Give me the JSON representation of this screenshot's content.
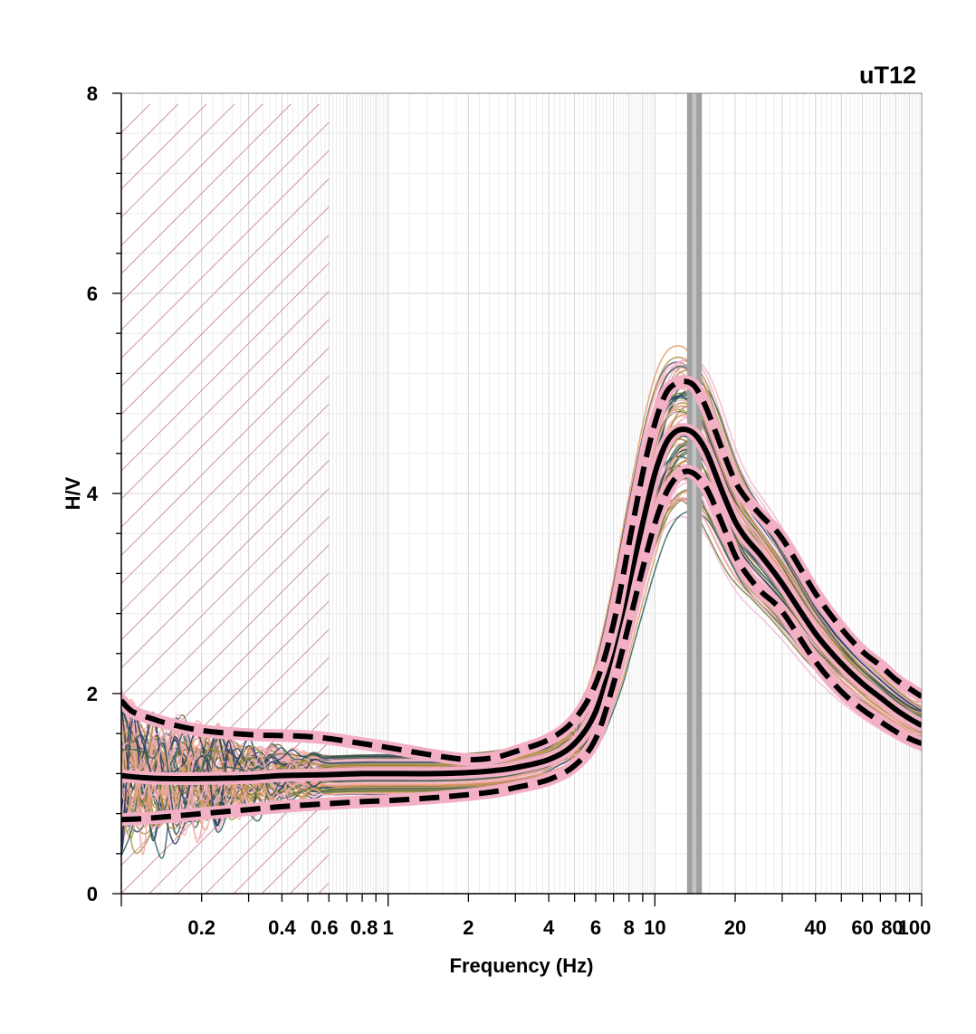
{
  "chart_data": {
    "type": "line",
    "title": "uT12",
    "xlabel": "Frequency (Hz)",
    "ylabel": "H/V",
    "x_scale": "log",
    "xlim": [
      0.1,
      100
    ],
    "ylim": [
      0,
      8
    ],
    "grid": true,
    "x_tick_labels": [
      {
        "value": 0.2,
        "label": "0.2"
      },
      {
        "value": 0.4,
        "label": "0.4"
      },
      {
        "value": 0.6,
        "label": "0.6"
      },
      {
        "value": 0.8,
        "label": "0.8"
      },
      {
        "value": 1,
        "label": "1"
      },
      {
        "value": 2,
        "label": "2"
      },
      {
        "value": 4,
        "label": "4"
      },
      {
        "value": 6,
        "label": "6"
      },
      {
        "value": 8,
        "label": "8"
      },
      {
        "value": 10,
        "label": "10"
      },
      {
        "value": 20,
        "label": "20"
      },
      {
        "value": 40,
        "label": "40"
      },
      {
        "value": 60,
        "label": "60"
      },
      {
        "value": 80,
        "label": "80"
      },
      {
        "value": 100,
        "label": "100"
      }
    ],
    "y_tick_labels": [
      {
        "value": 0,
        "label": "0"
      },
      {
        "value": 2,
        "label": "2"
      },
      {
        "value": 4,
        "label": "4"
      },
      {
        "value": 6,
        "label": "6"
      },
      {
        "value": 8,
        "label": "8"
      }
    ],
    "excluded_band": {
      "x": [
        0.1,
        0.6
      ],
      "color": "#c07a90",
      "pattern": "diagonal-hatch"
    },
    "peak_frequency_band": {
      "outer": [
        13.2,
        15.0
      ],
      "inner": [
        13.8,
        14.3
      ],
      "outer_color": "#a0a0a0",
      "inner_color": "#c4c4c4"
    },
    "window_curve_colors": [
      "#1f3a68",
      "#2e5e5a",
      "#6f7a3a",
      "#a8923c",
      "#e09a62",
      "#f4a69a",
      "#f1b3c6",
      "#f6b6d8"
    ],
    "series": [
      {
        "role": "mean",
        "style": "solid",
        "color": "#000000",
        "x": [
          0.1,
          0.12,
          0.15,
          0.2,
          0.3,
          0.4,
          0.6,
          0.8,
          1,
          1.5,
          2,
          2.5,
          3,
          4,
          5,
          6,
          7,
          8,
          9,
          10,
          11,
          12,
          13,
          14,
          15,
          16,
          18,
          20,
          22,
          25,
          30,
          40,
          50,
          60,
          70,
          80,
          90,
          100
        ],
        "y": [
          1.18,
          1.16,
          1.15,
          1.15,
          1.16,
          1.18,
          1.19,
          1.2,
          1.2,
          1.2,
          1.21,
          1.23,
          1.26,
          1.34,
          1.5,
          1.82,
          2.4,
          3.1,
          3.7,
          4.2,
          4.5,
          4.62,
          4.64,
          4.6,
          4.5,
          4.35,
          4.0,
          3.72,
          3.55,
          3.38,
          3.1,
          2.6,
          2.3,
          2.1,
          1.96,
          1.84,
          1.75,
          1.68
        ]
      },
      {
        "role": "mean+std",
        "style": "dashed",
        "color": "#000000",
        "x": [
          0.1,
          0.11,
          0.13,
          0.15,
          0.2,
          0.3,
          0.4,
          0.5,
          0.6,
          0.8,
          1,
          1.5,
          2,
          2.5,
          3,
          4,
          5,
          6,
          7,
          8,
          9,
          10,
          11,
          12,
          13,
          14,
          15,
          16,
          18,
          20,
          22,
          25,
          30,
          40,
          50,
          60,
          70,
          80,
          90,
          100
        ],
        "y": [
          1.93,
          1.82,
          1.75,
          1.7,
          1.63,
          1.59,
          1.58,
          1.57,
          1.55,
          1.5,
          1.46,
          1.38,
          1.34,
          1.36,
          1.42,
          1.54,
          1.74,
          2.1,
          2.7,
          3.5,
          4.2,
          4.7,
          5.0,
          5.1,
          5.12,
          5.08,
          4.95,
          4.78,
          4.42,
          4.12,
          3.95,
          3.78,
          3.55,
          3.0,
          2.65,
          2.42,
          2.28,
          2.14,
          2.05,
          1.97
        ]
      },
      {
        "role": "mean-std",
        "style": "dashed",
        "color": "#000000",
        "x": [
          0.1,
          0.12,
          0.15,
          0.2,
          0.3,
          0.4,
          0.6,
          0.8,
          1,
          1.5,
          2,
          2.5,
          3,
          4,
          5,
          6,
          7,
          8,
          9,
          10,
          11,
          12,
          13,
          14,
          15,
          16,
          18,
          20,
          22,
          25,
          30,
          40,
          50,
          60,
          70,
          80,
          90,
          100
        ],
        "y": [
          0.74,
          0.75,
          0.77,
          0.8,
          0.84,
          0.87,
          0.9,
          0.92,
          0.93,
          0.96,
          0.99,
          1.02,
          1.06,
          1.14,
          1.28,
          1.55,
          2.1,
          2.7,
          3.25,
          3.7,
          4.0,
          4.16,
          4.22,
          4.2,
          4.12,
          4.0,
          3.68,
          3.38,
          3.2,
          3.02,
          2.82,
          2.32,
          2.02,
          1.84,
          1.72,
          1.62,
          1.55,
          1.5
        ]
      }
    ]
  }
}
